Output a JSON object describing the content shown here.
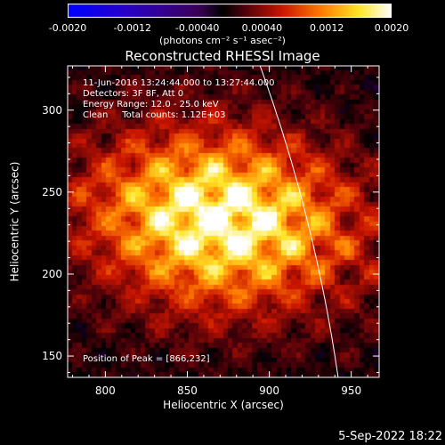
{
  "colorbar": {
    "ticks": [
      "-0.0020",
      "-0.0012",
      "-0.00040",
      "0.00040",
      "0.0012",
      "0.0020"
    ],
    "unit_label": "(photons cm⁻² s⁻¹ asec⁻²)",
    "range": [
      -0.002,
      0.002
    ]
  },
  "chart_data": {
    "type": "heatmap",
    "title": "Reconstructed RHESSI Image",
    "xlabel": "Heliocentric X (arcsec)",
    "ylabel": "Heliocentric Y (arcsec)",
    "xlim": [
      777,
      967
    ],
    "ylim": [
      137,
      327
    ],
    "xticks": [
      "800",
      "850",
      "900",
      "950"
    ],
    "yticks": [
      "150",
      "200",
      "250",
      "300"
    ],
    "peak": [
      866,
      232
    ],
    "info_lines": [
      "11-Jun-2016 13:24:44.000 to 13:27:44.000",
      "Detectors: 3F 8F, Att 0",
      "Energy Range: 12.0 - 25.0 keV",
      "Clean     Total counts: 1.12E+03"
    ],
    "peak_label": "Position of Peak = [866,232]",
    "limb_visible": true
  },
  "footer": {
    "timestamp": "5-Sep-2022 18:22"
  }
}
